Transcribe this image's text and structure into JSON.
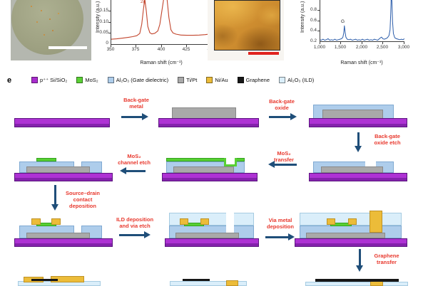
{
  "figure": {
    "panel_label": "e"
  },
  "colors": {
    "substrate": "#ae32d4",
    "substrate-dark": "#8422ac",
    "substrate-border": "#5c1580",
    "metal": "#a9a9a9",
    "oxide": "#aecdeb",
    "mos2": "#57cf33",
    "gold": "#ecbc39",
    "graphene": "#161616",
    "ild": "#daeefa",
    "arrow": "#1f4e79",
    "step-label": "#e8392e",
    "scalebar-red": "#e0231e",
    "scalebar-white": "#ffffff"
  },
  "charts": [
    {
      "id": "mos2_raman",
      "type": "line",
      "color": "#c2452d",
      "xlabel": "Raman shift (cm⁻¹)",
      "ylabel": "Intensity (a.u.)",
      "xlim": [
        350,
        450
      ],
      "ybase": 0,
      "xticks": [
        "350",
        "375",
        "400",
        "425",
        "450"
      ],
      "yticks": [
        "0",
        "0.05",
        "0.10",
        "0.15"
      ],
      "peak_label": "2g",
      "x": [
        350,
        356,
        362,
        368,
        372,
        376,
        379,
        381,
        382.5,
        384,
        385.5,
        387,
        389,
        391,
        394,
        397,
        399,
        401,
        403,
        404.5,
        406,
        408,
        410,
        412,
        415,
        420,
        426,
        432,
        438,
        444,
        450
      ],
      "y": [
        0.022,
        0.024,
        0.027,
        0.031,
        0.034,
        0.038,
        0.048,
        0.09,
        0.15,
        0.205,
        0.15,
        0.08,
        0.052,
        0.046,
        0.049,
        0.06,
        0.09,
        0.15,
        0.21,
        0.255,
        0.21,
        0.12,
        0.065,
        0.051,
        0.045,
        0.041,
        0.04,
        0.04,
        0.041,
        0.043,
        0.046
      ]
    },
    {
      "id": "graphene_raman",
      "type": "line",
      "color": "#2a5caa",
      "xlabel": "Raman shift (cm⁻¹)",
      "ylabel": "Intensity (a.u.)",
      "xlim": [
        1000,
        3000
      ],
      "ybase": 0.2,
      "xticks": [
        "1,000",
        "1,500",
        "2,000",
        "2,500",
        "3,000"
      ],
      "yticks": [
        "0.2",
        "0.4",
        "0.6",
        "0.8"
      ],
      "peak_label": "G",
      "x": [
        1000,
        1040,
        1080,
        1120,
        1160,
        1200,
        1240,
        1280,
        1320,
        1360,
        1400,
        1440,
        1480,
        1520,
        1550,
        1570,
        1585,
        1600,
        1620,
        1650,
        1690,
        1730,
        1770,
        1810,
        1850,
        1890,
        1930,
        1970,
        2010,
        2050,
        2090,
        2130,
        2170,
        2210,
        2250,
        2290,
        2330,
        2370,
        2410,
        2440,
        2460,
        2490,
        2520,
        2560,
        2600,
        2635,
        2660,
        2675,
        2686,
        2695,
        2705,
        2720,
        2740,
        2770,
        2810,
        2850,
        2890,
        2930,
        2965,
        3000
      ],
      "y": [
        0.23,
        0.22,
        0.24,
        0.22,
        0.23,
        0.25,
        0.22,
        0.23,
        0.22,
        0.24,
        0.22,
        0.23,
        0.24,
        0.25,
        0.28,
        0.36,
        0.5,
        0.39,
        0.28,
        0.24,
        0.23,
        0.24,
        0.22,
        0.23,
        0.24,
        0.22,
        0.23,
        0.22,
        0.24,
        0.22,
        0.23,
        0.24,
        0.22,
        0.23,
        0.22,
        0.24,
        0.23,
        0.22,
        0.25,
        0.27,
        0.28,
        0.25,
        0.24,
        0.25,
        0.27,
        0.31,
        0.42,
        0.72,
        1.0,
        1.05,
        0.97,
        0.58,
        0.35,
        0.27,
        0.25,
        0.24,
        0.23,
        0.24,
        0.23,
        0.25
      ]
    }
  ],
  "legend": {
    "items": [
      {
        "label": "p⁺⁺ Si/SiO₂",
        "color": "#a92cce"
      },
      {
        "label": "MoS₂",
        "color": "#5bd135"
      },
      {
        "label": "Al₂O₃ (Gate dielectric)",
        "color": "#aecdeb"
      },
      {
        "label": "Ti/Pt",
        "color": "#a9a9a9"
      },
      {
        "label": "Ni/Au",
        "color": "#ecbc39"
      },
      {
        "label": "Graphene",
        "color": "#171717"
      },
      {
        "label": "Al₂O₃ (ILD)",
        "color": "#daeefa"
      }
    ]
  },
  "process_steps": [
    {
      "lines": [
        "Back-gate",
        "metal"
      ]
    },
    {
      "lines": [
        "Back-gate",
        "oxide"
      ]
    },
    {
      "lines": [
        "Back-gate",
        "oxide etch"
      ]
    },
    {
      "lines": [
        "MoS₂",
        "transfer"
      ]
    },
    {
      "lines": [
        "MoS₂",
        "channel etch"
      ]
    },
    {
      "lines": [
        "Source–drain",
        "contact",
        "deposition"
      ]
    },
    {
      "lines": [
        "ILD deposition",
        "and via etch"
      ]
    },
    {
      "lines": [
        "Via metal",
        "deposition"
      ]
    },
    {
      "lines": [
        "Graphene",
        "transfer"
      ]
    }
  ]
}
